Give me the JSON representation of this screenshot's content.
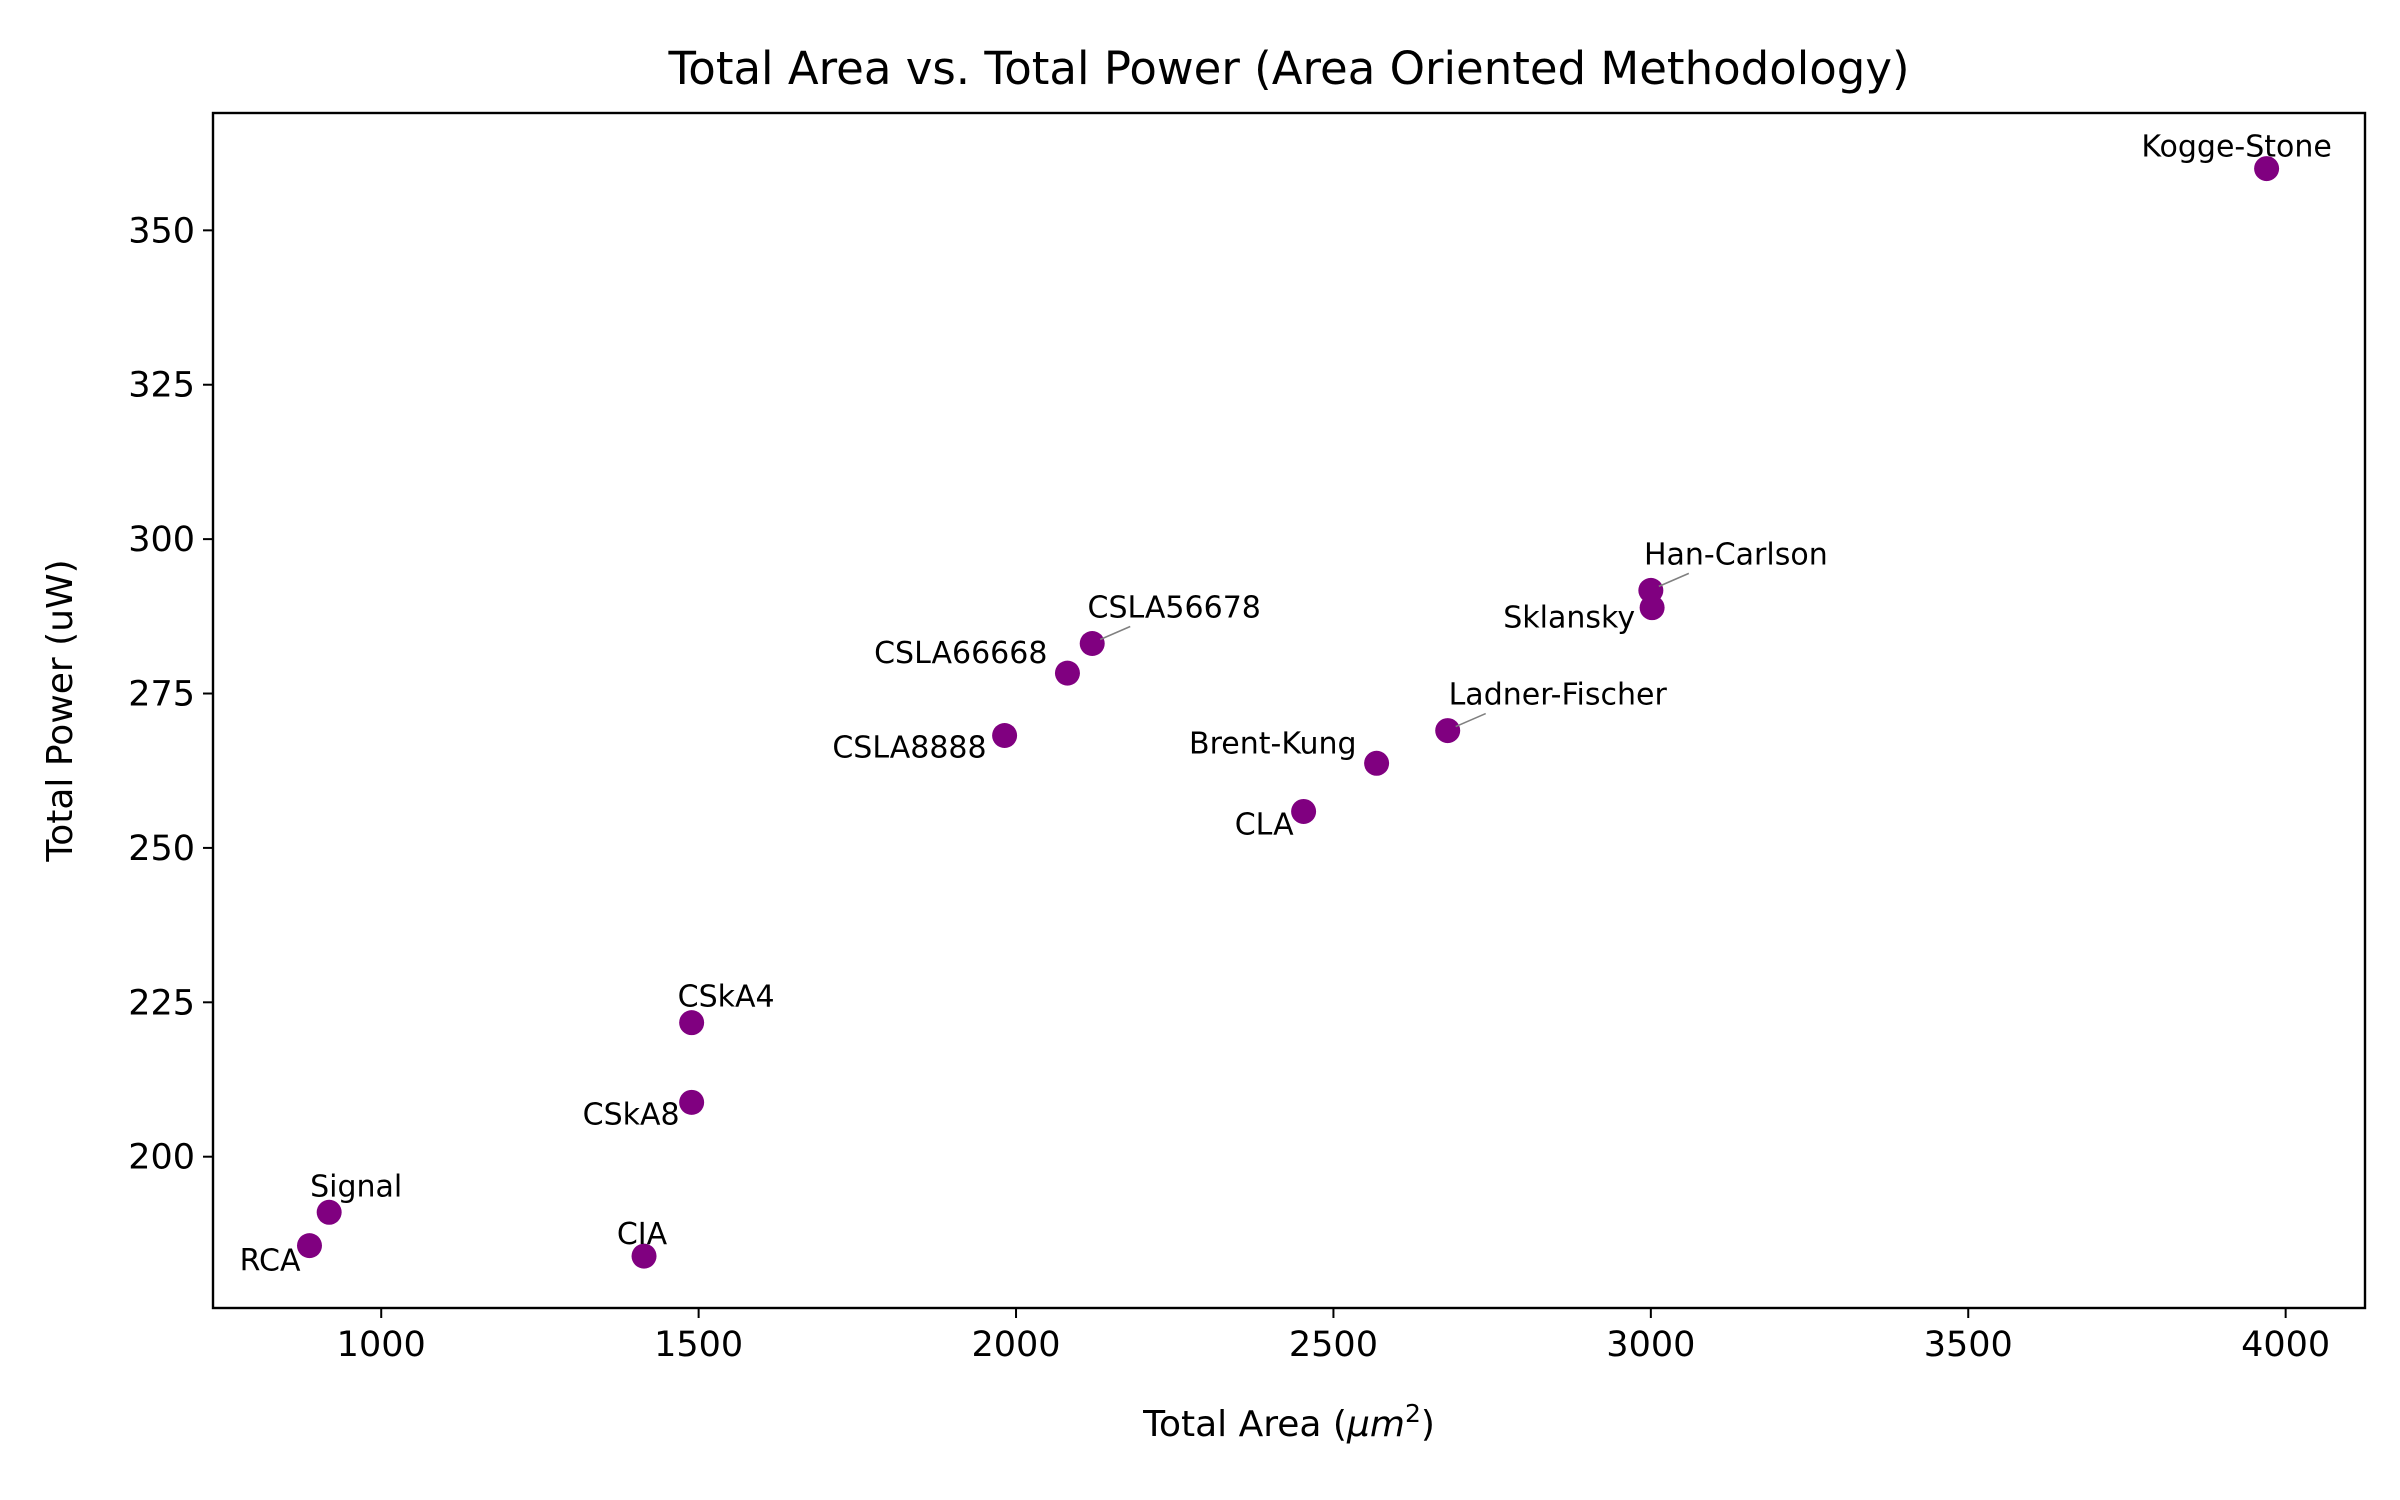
{
  "chart_data": {
    "type": "scatter",
    "title": "Total Area vs. Total Power (Area Oriented Methodology)",
    "xlabel": "Total Area (μm²)",
    "xlabel_prefix": "Total Area (",
    "xlabel_unit": "μm",
    "xlabel_exp": "2",
    "xlabel_suffix": ")",
    "ylabel": "Total Power (uW)",
    "xlim": [
      735,
      4125
    ],
    "ylim": [
      175.5,
      369
    ],
    "xticks": [
      1000,
      1500,
      2000,
      2500,
      3000,
      3500,
      4000
    ],
    "yticks": [
      200,
      225,
      250,
      275,
      300,
      325,
      350
    ],
    "xtick_labels": [
      "1000",
      "1500",
      "2000",
      "2500",
      "3000",
      "3500",
      "4000"
    ],
    "ytick_labels": [
      "200",
      "225",
      "250",
      "275",
      "300",
      "325",
      "350"
    ],
    "grid": false,
    "marker_color": "#800080",
    "leader_color": "#808080",
    "points": [
      {
        "label": "Kogge-Stone",
        "x": 3970,
        "y": 360.0
      },
      {
        "label": "Han-Carlson",
        "x": 3000,
        "y": 291.7
      },
      {
        "label": "Sklansky",
        "x": 3002,
        "y": 288.9
      },
      {
        "label": "Ladner-Fischer",
        "x": 2680,
        "y": 269.0
      },
      {
        "label": "Brent-Kung",
        "x": 2568,
        "y": 263.7
      },
      {
        "label": "CLA",
        "x": 2453,
        "y": 255.9
      },
      {
        "label": "CSLA56678",
        "x": 2120,
        "y": 283.1
      },
      {
        "label": "CSLA66668",
        "x": 2081,
        "y": 278.3
      },
      {
        "label": "CSLA8888",
        "x": 1982,
        "y": 268.2
      },
      {
        "label": "CSkA4",
        "x": 1489,
        "y": 221.7
      },
      {
        "label": "CSkA8",
        "x": 1489,
        "y": 208.8
      },
      {
        "label": "Signal",
        "x": 918,
        "y": 191.0
      },
      {
        "label": "RCA",
        "x": 887,
        "y": 185.6
      },
      {
        "label": "CIA",
        "x": 1414,
        "y": 183.9
      }
    ]
  }
}
